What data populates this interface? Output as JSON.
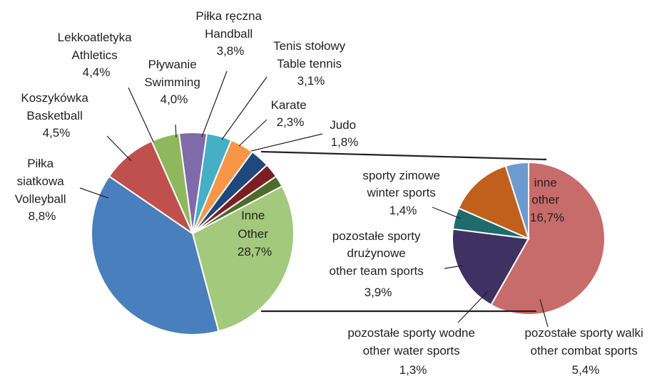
{
  "chart_data": [
    {
      "type": "pie",
      "slices": [
        {
          "label": "Inne",
          "label_en": "Other",
          "value": 28.7,
          "value_label": "28,7%",
          "color": "#a3c97c"
        },
        {
          "label": "",
          "label_en": "",
          "value": 38.8,
          "value_label": "",
          "color": "#4a7fbd"
        },
        {
          "label": "Piłka siatkowa",
          "label_en": "Volleyball",
          "value": 8.8,
          "value_label": "8,8%",
          "color": "#c0504d"
        },
        {
          "label": "Koszykówka",
          "label_en": "Basketball",
          "value": 4.5,
          "value_label": "4,5%",
          "color": "#8fb85c"
        },
        {
          "label": "Lekkoatletyka",
          "label_en": "Athletics",
          "value": 4.4,
          "value_label": "4,4%",
          "color": "#7f6aaa"
        },
        {
          "label": "Pływanie",
          "label_en": "Swimming",
          "value": 4.0,
          "value_label": "4,0%",
          "color": "#45afc6"
        },
        {
          "label": "Piłka ręczna",
          "label_en": "Handball",
          "value": 3.8,
          "value_label": "3,8%",
          "color": "#f79646"
        },
        {
          "label": "Tenis stołowy",
          "label_en": "Table tennis",
          "value": 3.1,
          "value_label": "3,1%",
          "color": "#1f497d"
        },
        {
          "label": "Karate",
          "label_en": "",
          "value": 2.3,
          "value_label": "2,3%",
          "color": "#7b1f25"
        },
        {
          "label": "Judo",
          "label_en": "",
          "value": 1.8,
          "value_label": "1,8%",
          "color": "#4e6b2a"
        }
      ]
    },
    {
      "type": "pie",
      "slices": [
        {
          "label": "inne",
          "label_en": "other",
          "value": 16.7,
          "value_label": "16,7%",
          "color": "#c86b6b"
        },
        {
          "label": "pozostałe sporty walki",
          "label_en": "other combat sports",
          "value": 5.4,
          "value_label": "5,4%",
          "color": "#3f3162"
        },
        {
          "label": "pozostałe sporty wodne",
          "label_en": "other water sports",
          "value": 1.3,
          "value_label": "1,3%",
          "color": "#1e6b6e"
        },
        {
          "label": "pozostałe sporty drużynowe",
          "label_en": "other team sports",
          "value": 3.9,
          "value_label": "3,9%",
          "color": "#c0601c"
        },
        {
          "label": "sporty zimowe",
          "label_en": "winter sports",
          "value": 1.4,
          "value_label": "1,4%",
          "color": "#6d9bd0"
        }
      ]
    }
  ],
  "labels": {
    "main": {
      "inne": [
        "Inne",
        "Other",
        "28,7%"
      ],
      "siatkowka": [
        "Piłka",
        "siatkowa",
        "Volleyball",
        "8,8%"
      ],
      "koszykowka": [
        "Koszykówka",
        "Basketball",
        "4,5%"
      ],
      "lekkoatletyka": [
        "Lekkoatletyka",
        "Athletics",
        "4,4%"
      ],
      "plywanie": [
        "Pływanie",
        "Swimming",
        "4,0%"
      ],
      "reczna": [
        "Piłka ręczna",
        "Handball",
        "3,8%"
      ],
      "tenis": [
        "Tenis stołowy",
        "Table tennis",
        "3,1%"
      ],
      "karate": [
        "Karate",
        "2,3%"
      ],
      "judo": [
        "Judo",
        "1,8%"
      ]
    },
    "sub": {
      "inne": [
        "inne",
        "other",
        "16,7%"
      ],
      "zimowe": [
        "sporty zimowe",
        "winter sports",
        "1,4%"
      ],
      "druzynowe": [
        "pozostałe sporty",
        "drużynowe",
        "other team sports",
        "3,9%"
      ],
      "wodne": [
        "pozostałe sporty wodne",
        "other water sports",
        "1,3%"
      ],
      "walki": [
        "pozostałe sporty walki",
        "other combat sports",
        "5,4%"
      ]
    }
  }
}
